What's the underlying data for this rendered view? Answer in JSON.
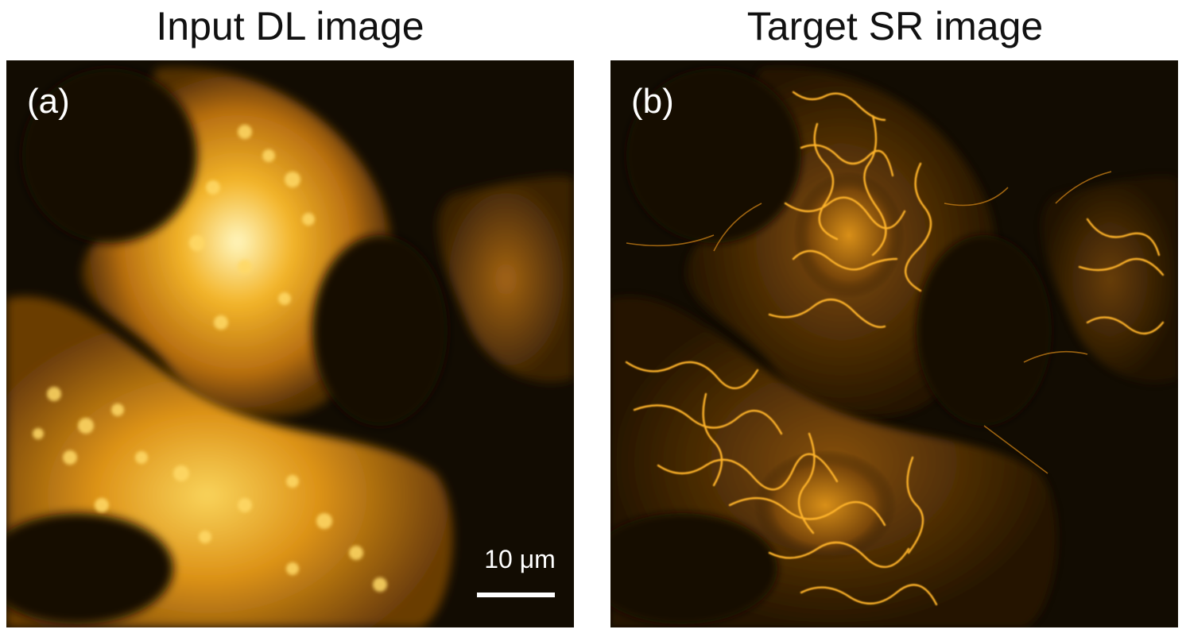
{
  "panels": [
    {
      "title": "Input DL image",
      "letter": "(a)",
      "scale_bar_label": "10 μm"
    },
    {
      "title": "Target SR image",
      "letter": "(b)"
    }
  ],
  "colors": {
    "background": "#120c02",
    "cell_glow": "#d08a14",
    "bright_core": "#fff2a0",
    "sr_filament": "#ffb429"
  }
}
